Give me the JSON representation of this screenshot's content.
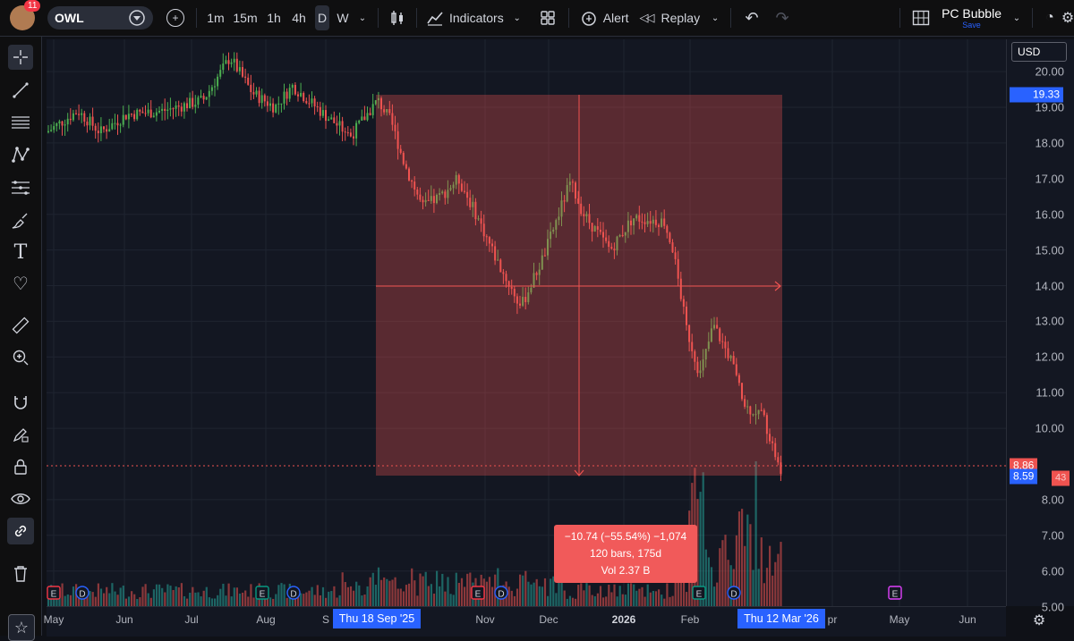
{
  "toolbar": {
    "notifications": "11",
    "symbol": "OWL",
    "intervals": [
      "1m",
      "15m",
      "1h",
      "4h",
      "D",
      "W"
    ],
    "active_interval": "D",
    "indicators_label": "Indicators",
    "alert_label": "Alert",
    "replay_label": "Replay",
    "layout_name": "PC Bubble",
    "save_label": "Save"
  },
  "currency": "USD",
  "price_axis": [
    "20.00",
    "19.00",
    "18.00",
    "17.00",
    "16.00",
    "15.00",
    "14.00",
    "13.00",
    "12.00",
    "11.00",
    "10.00",
    "8.00",
    "7.00",
    "6.00",
    "5.00"
  ],
  "price_tags": {
    "top": "19.33",
    "last": "8.86",
    "current": "8.59",
    "countdown": "43"
  },
  "time_axis": {
    "labels": [
      "May",
      "Jun",
      "Jul",
      "Aug",
      "S",
      "Nov",
      "Dec",
      "2026",
      "Feb",
      "pr",
      "May",
      "Jun"
    ],
    "range_start": "Thu 18 Sep '25",
    "range_end": "Thu 12 Mar '26"
  },
  "measure": {
    "change": "−10.74 (−55.54%) −1,074",
    "bars": "120 bars, 175d",
    "volume": "Vol 2.37 B"
  },
  "event_markers": [
    {
      "kind": "E",
      "color": "#f23645"
    },
    {
      "kind": "D",
      "color": "#2962ff"
    },
    {
      "kind": "E",
      "color": "#089981"
    },
    {
      "kind": "D",
      "color": "#2962ff"
    },
    {
      "kind": "E",
      "color": "#f23645"
    },
    {
      "kind": "D",
      "color": "#2962ff"
    },
    {
      "kind": "E",
      "color": "#089981"
    },
    {
      "kind": "D",
      "color": "#2962ff"
    },
    {
      "kind": "E",
      "color": "#e040fb"
    }
  ],
  "colors": {
    "up": "#4caf50",
    "down": "#ef5350",
    "measure_fill": "#ef5350",
    "accent": "#2962ff"
  }
}
